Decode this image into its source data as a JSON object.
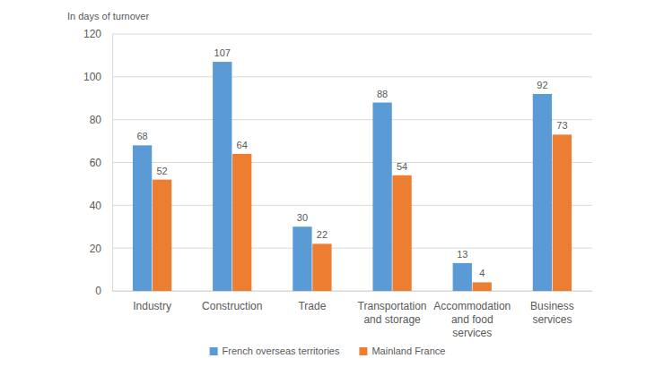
{
  "chart_data": {
    "type": "bar",
    "y_label": "In days of turnover",
    "categories": [
      "Industry",
      "Construction",
      "Trade",
      "Transportation and storage",
      "Accommodation and food services",
      "Business services"
    ],
    "series": [
      {
        "name": "French overseas territories",
        "color": "#5b9bd5",
        "values": [
          68,
          107,
          30,
          88,
          13,
          92
        ]
      },
      {
        "name": "Mainland France",
        "color": "#ed7d31",
        "values": [
          52,
          64,
          22,
          54,
          4,
          73
        ]
      }
    ],
    "ylim": [
      0,
      120
    ],
    "yticks": [
      0,
      20,
      40,
      60,
      80,
      100,
      120
    ],
    "grid": true,
    "data_labels": true,
    "legend": "bottom"
  }
}
